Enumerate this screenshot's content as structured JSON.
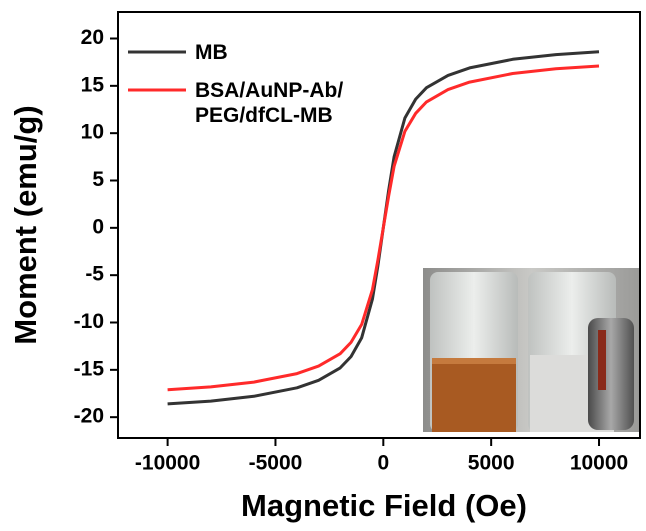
{
  "chart_data": {
    "type": "line",
    "x_label": "Magnetic Field (Oe)",
    "y_label": "Moment (emu/g)",
    "x": [
      -10000,
      -8000,
      -6000,
      -4000,
      -3000,
      -2000,
      -1500,
      -1000,
      -500,
      -250,
      0,
      250,
      500,
      1000,
      1500,
      2000,
      3000,
      4000,
      6000,
      8000,
      10000
    ],
    "series": [
      {
        "name": "MB",
        "color": "#333333",
        "values": [
          -18.6,
          -18.3,
          -17.8,
          -16.9,
          -16.1,
          -14.8,
          -13.6,
          -11.6,
          -7.5,
          -4.0,
          0,
          4.0,
          7.5,
          11.6,
          13.6,
          14.8,
          16.1,
          16.9,
          17.8,
          18.3,
          18.6
        ]
      },
      {
        "name": "BSA/AuNP-Ab/\nPEG/dfCL-MB",
        "color": "#ff2a2a",
        "values": [
          -17.1,
          -16.8,
          -16.3,
          -15.4,
          -14.6,
          -13.3,
          -12.1,
          -10.2,
          -6.5,
          -3.4,
          0,
          3.4,
          6.5,
          10.2,
          12.1,
          13.3,
          14.6,
          15.4,
          16.3,
          16.8,
          17.1
        ]
      }
    ],
    "xlim": [
      -12300,
      11900
    ],
    "ylim": [
      -22.2,
      22.8
    ],
    "xticks": [
      -10000,
      -5000,
      0,
      5000,
      10000
    ],
    "yticks": [
      -20,
      -15,
      -10,
      -5,
      0,
      5,
      10,
      15,
      20
    ],
    "legend": "upper left"
  }
}
